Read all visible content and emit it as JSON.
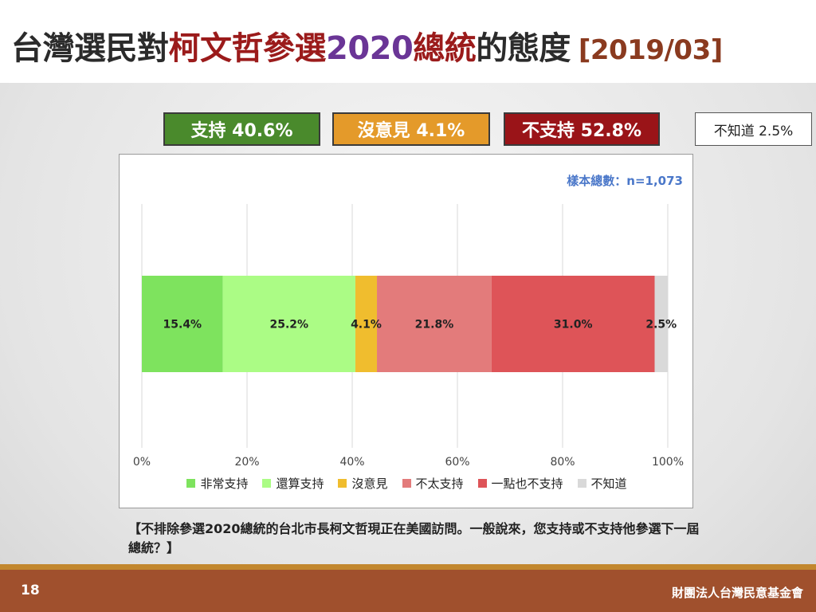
{
  "title": {
    "part1": "台灣選民對",
    "part2": "柯文哲參選",
    "part3": "2020",
    "part4": "總統",
    "part5": "的態度",
    "date": "[2019/03]"
  },
  "summary": {
    "support": "支持 40.6%",
    "neutral": "沒意見 4.1%",
    "oppose": "不支持 52.8%",
    "unknown": "不知道 2.5%"
  },
  "sample_note": "樣本總數：n=1,073",
  "question": "【不排除參選2020總統的台北市長柯文哲現正在美國訪問。一般說來，您支持或不支持他參選下一屆總統？】",
  "footer": {
    "page": "18",
    "org": "財團法人台灣民意基金會"
  },
  "colors": {
    "strong_support": "#7ee35e",
    "support": "#abfc85",
    "neutral": "#f0bd2e",
    "not_really": "#e37b7b",
    "not_at_all": "#de5458",
    "unknown": "#d9d9d9"
  },
  "chart_data": {
    "type": "bar",
    "orientation": "horizontal",
    "stacked": true,
    "xlim": [
      0,
      100
    ],
    "xticks": [
      "0%",
      "20%",
      "40%",
      "60%",
      "80%",
      "100%"
    ],
    "grid": true,
    "legend_position": "bottom",
    "series": [
      {
        "name": "非常支持",
        "value": 15.4,
        "label": "15.4%",
        "color": "#7ee35e"
      },
      {
        "name": "還算支持",
        "value": 25.2,
        "label": "25.2%",
        "color": "#abfc85"
      },
      {
        "name": "沒意見",
        "value": 4.1,
        "label": "4.1%",
        "color": "#f0bd2e"
      },
      {
        "name": "不太支持",
        "value": 21.8,
        "label": "21.8%",
        "color": "#e37b7b"
      },
      {
        "name": "一點也不支持",
        "value": 31.0,
        "label": "31.0%",
        "color": "#de5458"
      },
      {
        "name": "不知道",
        "value": 2.5,
        "label": "2.5%",
        "color": "#d9d9d9"
      }
    ]
  }
}
